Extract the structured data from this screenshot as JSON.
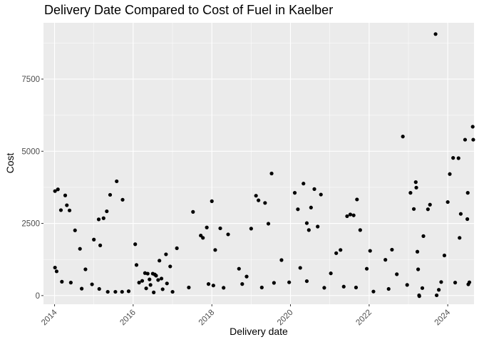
{
  "chart_data": {
    "type": "scatter",
    "title": "Delivery Date Compared to Cost of Fuel in Kaelber",
    "xlabel": "Delivery date",
    "ylabel": "Cost",
    "x_is_date": true,
    "xlim": [
      "2013-09-20",
      "2024-09-01"
    ],
    "ylim": [
      -300,
      9450
    ],
    "x_ticks": [
      {
        "label": "2014",
        "value": "2014-01-01"
      },
      {
        "label": "2016",
        "value": "2016-01-01"
      },
      {
        "label": "2018",
        "value": "2018-01-01"
      },
      {
        "label": "2020",
        "value": "2020-01-01"
      },
      {
        "label": "2022",
        "value": "2022-01-01"
      },
      {
        "label": "2024",
        "value": "2024-01-01"
      }
    ],
    "y_ticks": [
      {
        "label": "0",
        "value": 0
      },
      {
        "label": "2500",
        "value": 2500
      },
      {
        "label": "5000",
        "value": 5000
      },
      {
        "label": "7500",
        "value": 7500
      }
    ],
    "grid": true,
    "legend": "none",
    "colors": {
      "panel": "#ebebeb",
      "grid": "#ffffff",
      "point": "#000000"
    },
    "points": [
      {
        "x": "2014-01-05",
        "y": 3620
      },
      {
        "x": "2014-02-01",
        "y": 3680
      },
      {
        "x": "2014-03-01",
        "y": 2960
      },
      {
        "x": "2014-04-10",
        "y": 3470
      },
      {
        "x": "2014-04-25",
        "y": 3130
      },
      {
        "x": "2014-05-20",
        "y": 2950
      },
      {
        "x": "2014-07-10",
        "y": 2260
      },
      {
        "x": "2014-08-25",
        "y": 1620
      },
      {
        "x": "2014-01-05",
        "y": 970
      },
      {
        "x": "2014-01-20",
        "y": 840
      },
      {
        "x": "2014-03-10",
        "y": 480
      },
      {
        "x": "2014-06-01",
        "y": 450
      },
      {
        "x": "2014-09-10",
        "y": 240
      },
      {
        "x": "2014-10-15",
        "y": 910
      },
      {
        "x": "2014-12-15",
        "y": 390
      },
      {
        "x": "2015-01-01",
        "y": 1940
      },
      {
        "x": "2015-03-01",
        "y": 1740
      },
      {
        "x": "2015-02-15",
        "y": 2640
      },
      {
        "x": "2015-04-01",
        "y": 2680
      },
      {
        "x": "2015-05-01",
        "y": 2920
      },
      {
        "x": "2015-06-01",
        "y": 3490
      },
      {
        "x": "2015-08-01",
        "y": 3960
      },
      {
        "x": "2015-09-25",
        "y": 3320
      },
      {
        "x": "2015-02-20",
        "y": 230
      },
      {
        "x": "2015-05-10",
        "y": 130
      },
      {
        "x": "2015-07-20",
        "y": 130
      },
      {
        "x": "2015-09-20",
        "y": 130
      },
      {
        "x": "2015-11-20",
        "y": 150
      },
      {
        "x": "2016-01-20",
        "y": 1780
      },
      {
        "x": "2016-02-01",
        "y": 1060
      },
      {
        "x": "2016-02-25",
        "y": 450
      },
      {
        "x": "2016-03-25",
        "y": 510
      },
      {
        "x": "2016-04-20",
        "y": 780
      },
      {
        "x": "2016-05-01",
        "y": 250
      },
      {
        "x": "2016-05-15",
        "y": 760
      },
      {
        "x": "2016-06-01",
        "y": 560
      },
      {
        "x": "2016-06-10",
        "y": 370
      },
      {
        "x": "2016-07-01",
        "y": 760
      },
      {
        "x": "2016-07-10",
        "y": 110
      },
      {
        "x": "2016-07-20",
        "y": 730
      },
      {
        "x": "2016-08-01",
        "y": 690
      },
      {
        "x": "2016-08-20",
        "y": 540
      },
      {
        "x": "2016-09-01",
        "y": 1210
      },
      {
        "x": "2016-09-20",
        "y": 590
      },
      {
        "x": "2016-10-01",
        "y": 220
      },
      {
        "x": "2016-11-01",
        "y": 1430
      },
      {
        "x": "2016-11-10",
        "y": 420
      },
      {
        "x": "2016-12-10",
        "y": 1010
      },
      {
        "x": "2017-01-01",
        "y": 130
      },
      {
        "x": "2017-02-10",
        "y": 1640
      },
      {
        "x": "2017-06-01",
        "y": 280
      },
      {
        "x": "2017-07-10",
        "y": 2900
      },
      {
        "x": "2017-09-20",
        "y": 2080
      },
      {
        "x": "2017-10-10",
        "y": 2000
      },
      {
        "x": "2017-11-15",
        "y": 2360
      },
      {
        "x": "2017-12-01",
        "y": 400
      },
      {
        "x": "2018-01-01",
        "y": 3270
      },
      {
        "x": "2018-01-15",
        "y": 350
      },
      {
        "x": "2018-02-01",
        "y": 1580
      },
      {
        "x": "2018-03-20",
        "y": 2330
      },
      {
        "x": "2018-04-20",
        "y": 270
      },
      {
        "x": "2018-06-01",
        "y": 2120
      },
      {
        "x": "2018-09-10",
        "y": 930
      },
      {
        "x": "2018-10-10",
        "y": 400
      },
      {
        "x": "2018-11-20",
        "y": 660
      },
      {
        "x": "2019-01-01",
        "y": 2320
      },
      {
        "x": "2019-02-15",
        "y": 3460
      },
      {
        "x": "2019-03-10",
        "y": 3300
      },
      {
        "x": "2019-04-10",
        "y": 280
      },
      {
        "x": "2019-05-10",
        "y": 3210
      },
      {
        "x": "2019-06-10",
        "y": 2490
      },
      {
        "x": "2019-07-10",
        "y": 4230
      },
      {
        "x": "2019-08-01",
        "y": 440
      },
      {
        "x": "2019-10-10",
        "y": 1230
      },
      {
        "x": "2019-12-20",
        "y": 460
      },
      {
        "x": "2020-02-10",
        "y": 3560
      },
      {
        "x": "2020-03-10",
        "y": 2990
      },
      {
        "x": "2020-04-01",
        "y": 960
      },
      {
        "x": "2020-05-01",
        "y": 3880
      },
      {
        "x": "2020-06-01",
        "y": 2510
      },
      {
        "x": "2020-06-20",
        "y": 2270
      },
      {
        "x": "2020-07-10",
        "y": 3050
      },
      {
        "x": "2020-08-10",
        "y": 3690
      },
      {
        "x": "2020-09-10",
        "y": 2390
      },
      {
        "x": "2020-10-10",
        "y": 3500
      },
      {
        "x": "2020-11-10",
        "y": 270
      },
      {
        "x": "2020-06-01",
        "y": 500
      },
      {
        "x": "2021-01-10",
        "y": 770
      },
      {
        "x": "2021-03-01",
        "y": 1470
      },
      {
        "x": "2021-04-10",
        "y": 1580
      },
      {
        "x": "2021-05-10",
        "y": 310
      },
      {
        "x": "2021-06-10",
        "y": 2750
      },
      {
        "x": "2021-07-10",
        "y": 2810
      },
      {
        "x": "2021-08-10",
        "y": 2780
      },
      {
        "x": "2021-09-01",
        "y": 280
      },
      {
        "x": "2021-09-10",
        "y": 3330
      },
      {
        "x": "2021-10-10",
        "y": 2270
      },
      {
        "x": "2021-12-10",
        "y": 930
      },
      {
        "x": "2022-01-10",
        "y": 1550
      },
      {
        "x": "2022-02-10",
        "y": 140
      },
      {
        "x": "2022-06-01",
        "y": 1240
      },
      {
        "x": "2022-07-01",
        "y": 230
      },
      {
        "x": "2022-08-01",
        "y": 1590
      },
      {
        "x": "2022-09-15",
        "y": 740
      },
      {
        "x": "2022-11-10",
        "y": 5510
      },
      {
        "x": "2022-12-20",
        "y": 370
      },
      {
        "x": "2023-01-20",
        "y": 3560
      },
      {
        "x": "2023-02-20",
        "y": 3000
      },
      {
        "x": "2023-05-10",
        "y": 260
      },
      {
        "x": "2023-07-20",
        "y": 3150
      },
      {
        "x": "2023-10-10",
        "y": 200
      },
      {
        "x": "2023-12-01",
        "y": 1390
      },
      {
        "x": "2024-01-01",
        "y": 3240
      },
      {
        "x": "2024-02-20",
        "y": 4770
      },
      {
        "x": "2024-04-10",
        "y": 4760
      },
      {
        "x": "2024-04-20",
        "y": 2000
      },
      {
        "x": "2024-06-10",
        "y": 5400
      },
      {
        "x": "2024-07-20",
        "y": 460
      },
      {
        "x": "2024-08-20",
        "y": 5850
      },
      {
        "x": "2023-03-10",
        "y": 3930
      },
      {
        "x": "2023-03-15",
        "y": 3740
      },
      {
        "x": "2023-03-25",
        "y": 1520
      },
      {
        "x": "2023-04-01",
        "y": 910
      },
      {
        "x": "2023-04-10",
        "y": 10
      },
      {
        "x": "2023-04-12",
        "y": -20
      },
      {
        "x": "2023-05-20",
        "y": 2060
      },
      {
        "x": "2023-07-01",
        "y": 2990
      },
      {
        "x": "2023-09-10",
        "y": 9060
      },
      {
        "x": "2023-09-20",
        "y": 10
      },
      {
        "x": "2023-11-01",
        "y": 470
      },
      {
        "x": "2024-01-20",
        "y": 4210
      },
      {
        "x": "2024-03-10",
        "y": 450
      },
      {
        "x": "2024-05-01",
        "y": 2830
      },
      {
        "x": "2024-07-01",
        "y": 2650
      },
      {
        "x": "2024-07-05",
        "y": 3560
      },
      {
        "x": "2024-07-10",
        "y": 390
      },
      {
        "x": "2024-08-25",
        "y": 5400
      }
    ]
  }
}
